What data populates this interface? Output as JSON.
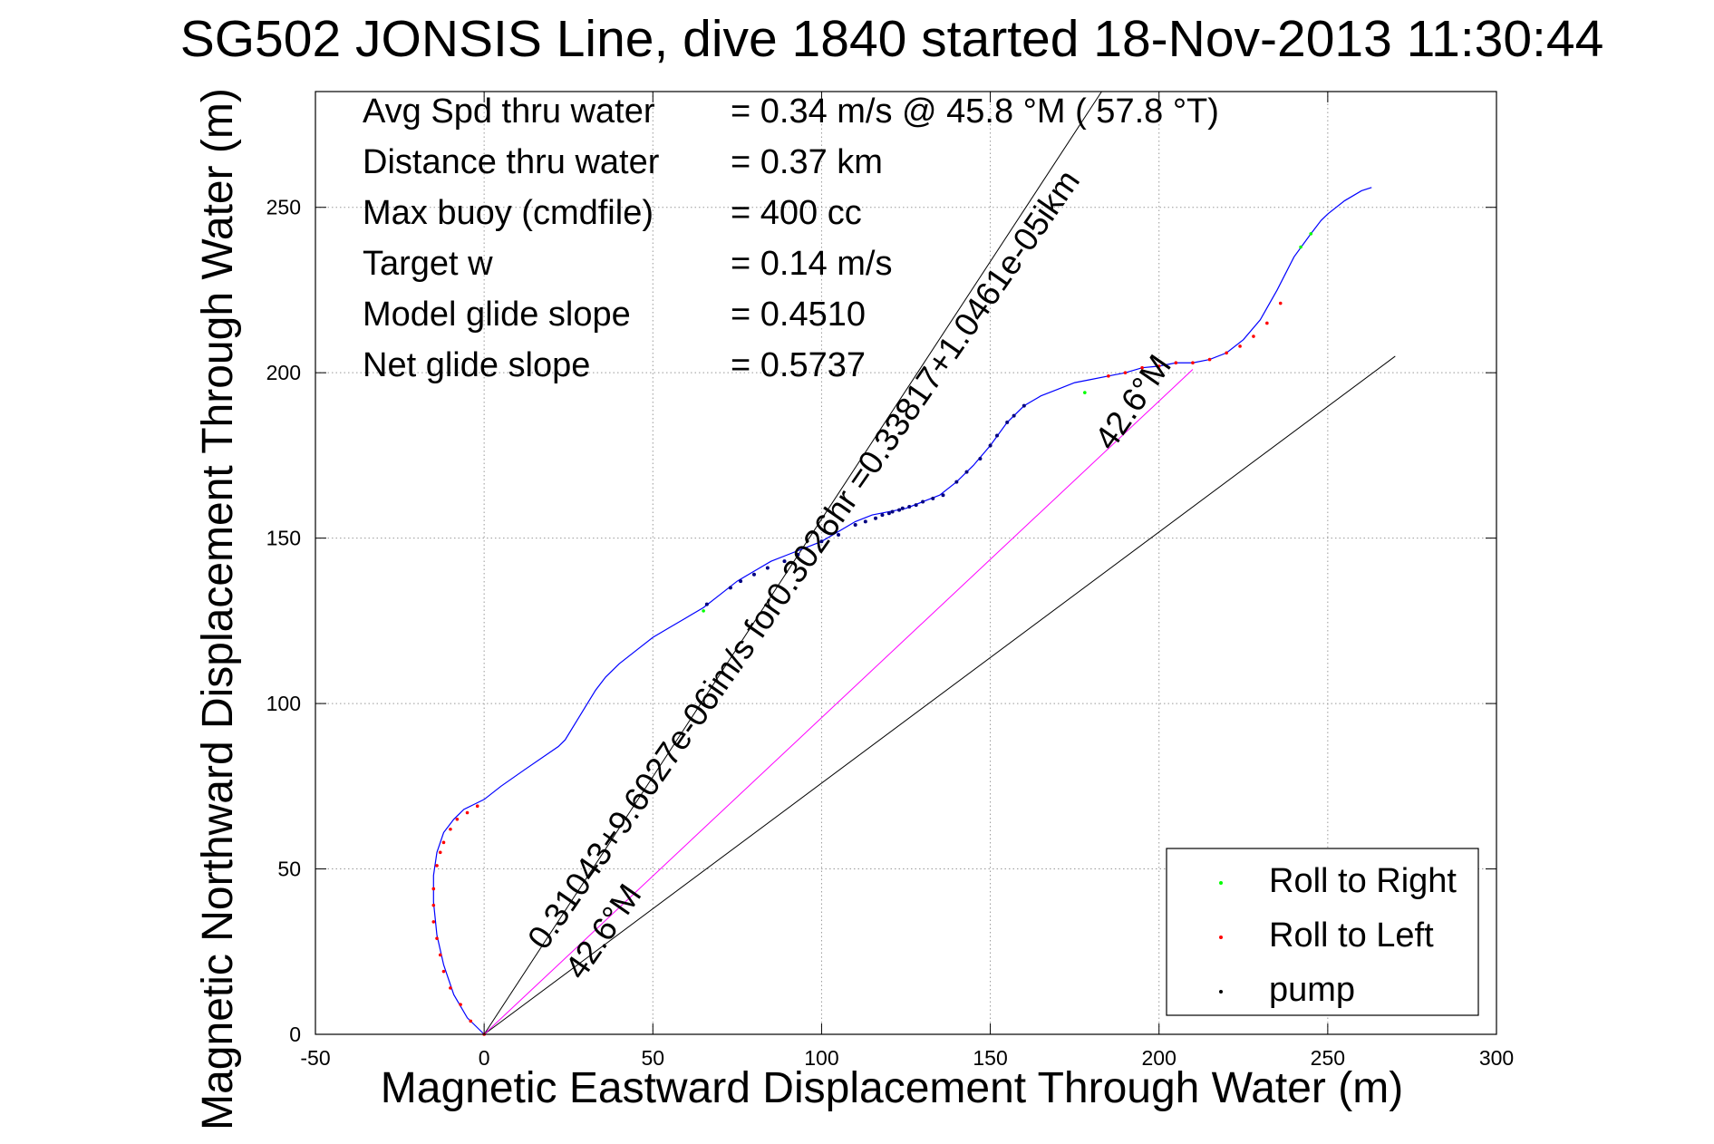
{
  "chart_data": {
    "type": "line",
    "title": "SG502 JONSIS Line, dive 1840 started 18-Nov-2013 11:30:44",
    "xlabel": "Magnetic Eastward Displacement Through Water (m)",
    "ylabel": "Magnetic Northward Displacement Through Water (m)",
    "xlim": [
      -50,
      300
    ],
    "ylim": [
      0,
      285
    ],
    "xticks": [
      -50,
      0,
      50,
      100,
      150,
      200,
      250,
      300
    ],
    "yticks": [
      0,
      50,
      100,
      150,
      200,
      250
    ],
    "grid": true,
    "legend_position": "bottom-right",
    "info_lines": [
      {
        "label": "Avg Spd thru water",
        "value": "=  0.34 m/s @  45.8 °M ( 57.8 °T)"
      },
      {
        "label": "Distance thru water",
        "value": "=  0.37 km"
      },
      {
        "label": "Max buoy (cmdfile)",
        "value": "= 400 cc"
      },
      {
        "label": "Target w",
        "value": "= 0.14 m/s"
      },
      {
        "label": "Model glide slope",
        "value": "= 0.4510"
      },
      {
        "label": "Net glide slope",
        "value": "= 0.5737"
      }
    ],
    "track": {
      "color": "#0000ff",
      "x": [
        0,
        -5,
        -9,
        -12,
        -14,
        -15,
        -15,
        -14,
        -12,
        -9,
        -6,
        -3,
        0,
        5,
        12,
        22,
        24,
        27,
        30,
        33,
        36,
        40,
        45,
        50,
        55,
        60,
        65,
        70,
        75,
        80,
        85,
        90,
        95,
        100,
        105,
        110,
        115,
        120,
        125,
        130,
        135,
        140,
        145,
        150,
        155,
        160,
        165,
        170,
        175,
        180,
        185,
        190,
        195,
        200,
        205,
        210,
        215,
        220,
        225,
        230,
        235,
        240,
        245,
        248,
        250,
        255,
        260,
        263
      ],
      "y": [
        0,
        5,
        12,
        21,
        30,
        40,
        48,
        55,
        61,
        65,
        68,
        69.5,
        71,
        75,
        80,
        87,
        89,
        94,
        99,
        104,
        108,
        112,
        116,
        120,
        123,
        126,
        129,
        133,
        137,
        140,
        143,
        145,
        147,
        149,
        152,
        155,
        157,
        158,
        159,
        161,
        163,
        167,
        172,
        178,
        185,
        190,
        193,
        195,
        197,
        198,
        199,
        200,
        201.5,
        202,
        203,
        203,
        204,
        206,
        210,
        216,
        225,
        235,
        242,
        246,
        248,
        252,
        255,
        256
      ]
    },
    "model_line": {
      "color": "#ff00ff",
      "x": [
        0,
        210
      ],
      "y": [
        0,
        201
      ]
    },
    "reference_lines": [
      {
        "color": "#000000",
        "x": [
          0,
          183
        ],
        "y": [
          0,
          285
        ]
      },
      {
        "color": "#000000",
        "x": [
          0,
          270
        ],
        "y": [
          0,
          205
        ]
      }
    ],
    "pump_markers": {
      "color": "#000080",
      "x": [
        66,
        73,
        76,
        80,
        84,
        89,
        93,
        100,
        105,
        110,
        113,
        116,
        118,
        120,
        121,
        123,
        124,
        126,
        128,
        130,
        133,
        136,
        140,
        143,
        147,
        150,
        152,
        155,
        157,
        160
      ],
      "y": [
        130,
        135,
        137,
        139,
        141,
        143,
        145,
        149,
        151,
        154,
        155,
        156,
        157,
        157.5,
        158,
        158.5,
        159,
        159.5,
        160,
        161,
        162,
        163,
        167,
        170,
        174,
        178,
        181,
        185,
        187,
        190
      ]
    },
    "roll_left_markers": {
      "color": "#ff0000",
      "x": [
        0,
        -4,
        -7,
        -10,
        -12,
        -13,
        -14,
        -15,
        -15,
        -15,
        -14,
        -13,
        -12,
        -10,
        -8,
        -5,
        -2,
        185,
        190,
        195,
        200,
        205,
        210,
        215,
        220,
        224,
        228,
        232,
        236
      ],
      "y": [
        0,
        4,
        9,
        14,
        19,
        24,
        29,
        34,
        39,
        44,
        51,
        55,
        58,
        62,
        65,
        67,
        69,
        199,
        200,
        201.5,
        202,
        203,
        203,
        204,
        206,
        208,
        211,
        215,
        221
      ]
    },
    "roll_right_markers": {
      "color": "#00ff00",
      "x": [
        65,
        178,
        242,
        245
      ],
      "y": [
        128,
        194,
        238,
        242
      ]
    },
    "annotations": [
      {
        "text": "0.31043+9.6027e-06im/s for0.3026hr =0.33817+1.0461e-05ikm",
        "x": 18,
        "y": 25,
        "angle_deg": -55.2,
        "size": 23
      },
      {
        "text": "42.6°M",
        "x": 29,
        "y": 16,
        "angle_deg": -55.2,
        "size": 23
      },
      {
        "text": "42.6°M",
        "x": 186,
        "y": 176,
        "angle_deg": -55.2,
        "size": 23
      }
    ],
    "legend": [
      {
        "label": "Roll to Right",
        "color": "#00ff00"
      },
      {
        "label": "Roll to Left",
        "color": "#ff0000"
      },
      {
        "label": "pump",
        "color": "#000000"
      }
    ]
  }
}
